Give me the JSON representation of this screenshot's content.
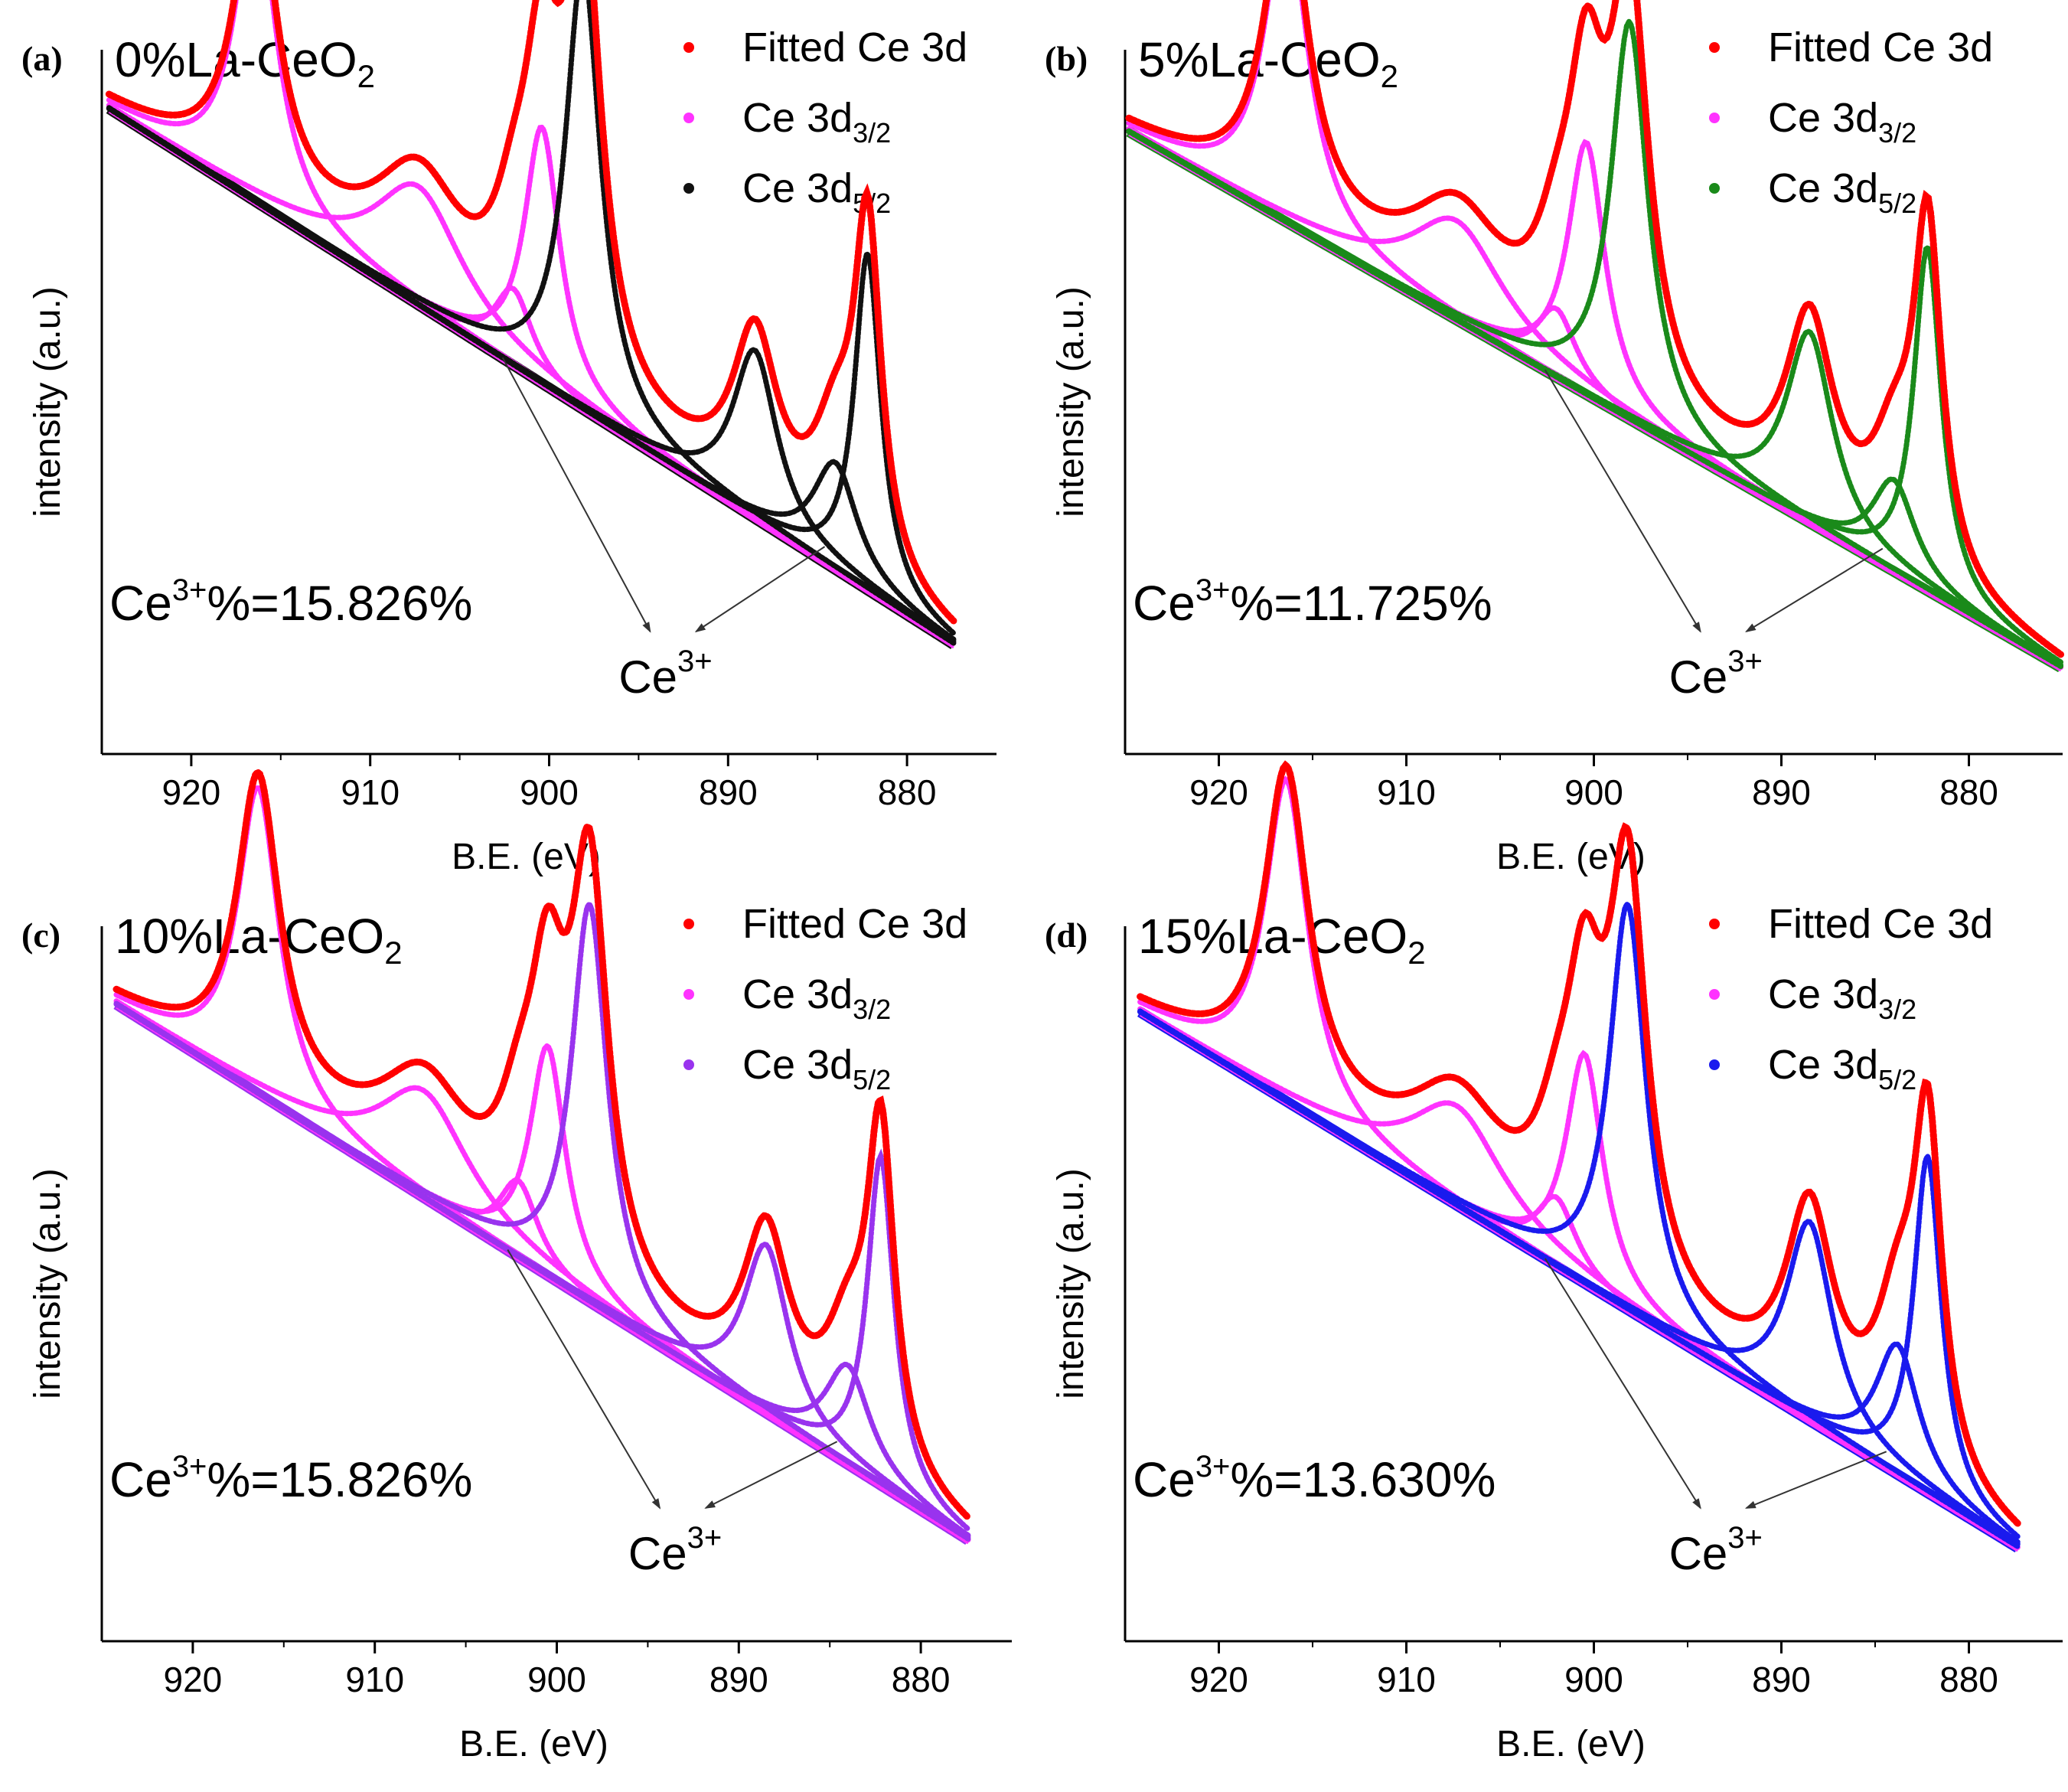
{
  "chart_data": [
    {
      "type": "scatter",
      "panel": "(a)",
      "sample": "0%La-CeO",
      "sample_sub": "2",
      "ce3_label": "Ce",
      "ce3_sup": "3+",
      "ce3_value": "%=15.826%",
      "annotation": "Ce",
      "annotation_sup": "3+",
      "xlabel": "B.E. (eV)",
      "ylabel": "intensity (a.u.)",
      "xlim": [
        925,
        875
      ],
      "x_ticks": [
        "920",
        "910",
        "900",
        "890",
        "880"
      ],
      "legend": [
        {
          "name": "Fitted Ce 3d",
          "sub": "",
          "color": "#ff0000"
        },
        {
          "name": "Ce 3d",
          "sub": "3/2",
          "color": "#ff33ff"
        },
        {
          "name": "Ce 3d",
          "sub": "5/2",
          "color": "#111111"
        }
      ],
      "colors": {
        "fit": "#ff0000",
        "d32": "#ff33ff",
        "d52": "#111111"
      },
      "background": {
        "x_start": 924.6,
        "y_start": 0.7,
        "x_end": 877.4,
        "y_end": 0.0
      },
      "peaks_d32": [
        {
          "center": 916.4,
          "height": 0.4,
          "width": 1.4
        },
        {
          "center": 907.3,
          "height": 0.155,
          "width": 3.0
        },
        {
          "center": 902.0,
          "height": 0.1,
          "width": 1.3
        },
        {
          "center": 900.4,
          "height": 0.335,
          "width": 1.2
        }
      ],
      "peaks_d52": [
        {
          "center": 898.1,
          "height": 0.58,
          "width": 1.2
        },
        {
          "center": 888.5,
          "height": 0.22,
          "width": 1.5
        },
        {
          "center": 884.0,
          "height": 0.14,
          "width": 1.5
        },
        {
          "center": 882.2,
          "height": 0.44,
          "width": 0.9
        }
      ]
    },
    {
      "type": "scatter",
      "panel": "(b)",
      "sample": "5%La-CeO",
      "sample_sub": "2",
      "ce3_label": "Ce",
      "ce3_sup": "3+",
      "ce3_value": "%=11.725%",
      "annotation": "Ce",
      "annotation_sup": "3+",
      "xlabel": "B.E. (eV)",
      "ylabel": "intensity (a.u.)",
      "xlim": [
        925,
        875
      ],
      "x_ticks": [
        "920",
        "910",
        "900",
        "890",
        "880"
      ],
      "legend": [
        {
          "name": "Fitted Ce 3d",
          "sub": "",
          "color": "#ff0000"
        },
        {
          "name": "Ce 3d",
          "sub": "3/2",
          "color": "#ff33ff"
        },
        {
          "name": "Ce 3d",
          "sub": "5/2",
          "color": "#1a8a1a"
        }
      ],
      "colors": {
        "fit": "#ff0000",
        "d32": "#ff33ff",
        "d52": "#1a8a1a"
      },
      "background": {
        "x_start": 924.8,
        "y_start": 0.7,
        "x_end": 875.1,
        "y_end": 0.0
      },
      "peaks_d32": [
        {
          "center": 916.4,
          "height": 0.41,
          "width": 1.4
        },
        {
          "center": 907.3,
          "height": 0.13,
          "width": 3.0
        },
        {
          "center": 902.0,
          "height": 0.09,
          "width": 1.3
        },
        {
          "center": 900.4,
          "height": 0.33,
          "width": 1.2
        }
      ],
      "peaks_d52": [
        {
          "center": 898.1,
          "height": 0.52,
          "width": 1.2
        },
        {
          "center": 888.5,
          "height": 0.25,
          "width": 1.5
        },
        {
          "center": 884.0,
          "height": 0.12,
          "width": 1.4
        },
        {
          "center": 882.2,
          "height": 0.45,
          "width": 0.9
        }
      ]
    },
    {
      "type": "scatter",
      "panel": "(c)",
      "sample": "10%La-CeO",
      "sample_sub": "2",
      "ce3_label": "Ce",
      "ce3_sup": "3+",
      "ce3_value": "%=15.826%",
      "annotation": "Ce",
      "annotation_sup": "3+",
      "xlabel": "B.E. (eV)",
      "ylabel": "intensity (a.u.)",
      "xlim": [
        925,
        875
      ],
      "x_ticks": [
        "920",
        "910",
        "900",
        "890",
        "880"
      ],
      "legend": [
        {
          "name": "Fitted Ce 3d",
          "sub": "",
          "color": "#ff0000"
        },
        {
          "name": "Ce 3d",
          "sub": "3/2",
          "color": "#ff33ff"
        },
        {
          "name": "Ce 3d",
          "sub": "5/2",
          "color": "#9933ee"
        }
      ],
      "colors": {
        "fit": "#ff0000",
        "d32": "#ff33ff",
        "d52": "#9933ee"
      },
      "background": {
        "x_start": 924.2,
        "y_start": 0.7,
        "x_end": 877.4,
        "y_end": 0.0
      },
      "peaks_d32": [
        {
          "center": 916.4,
          "height": 0.4,
          "width": 1.4
        },
        {
          "center": 907.3,
          "height": 0.14,
          "width": 3.0
        },
        {
          "center": 902.1,
          "height": 0.1,
          "width": 1.3
        },
        {
          "center": 900.5,
          "height": 0.3,
          "width": 1.2
        }
      ],
      "peaks_d52": [
        {
          "center": 898.2,
          "height": 0.52,
          "width": 1.2
        },
        {
          "center": 888.5,
          "height": 0.22,
          "width": 1.5
        },
        {
          "center": 884.0,
          "height": 0.13,
          "width": 1.5
        },
        {
          "center": 882.2,
          "height": 0.43,
          "width": 0.9
        }
      ]
    },
    {
      "type": "scatter",
      "panel": "(d)",
      "sample": "15%La-CeO",
      "sample_sub": "2",
      "ce3_label": "Ce",
      "ce3_sup": "3+",
      "ce3_value": "%=13.630%",
      "annotation": "Ce",
      "annotation_sup": "3+",
      "xlabel": "B.E. (eV)",
      "ylabel": "intensity (a.u.)",
      "xlim": [
        925,
        875
      ],
      "x_ticks": [
        "920",
        "910",
        "900",
        "890",
        "880"
      ],
      "legend": [
        {
          "name": "Fitted Ce 3d",
          "sub": "",
          "color": "#ff0000"
        },
        {
          "name": "Ce 3d",
          "sub": "3/2",
          "color": "#ff33ff"
        },
        {
          "name": "Ce 3d",
          "sub": "5/2",
          "color": "#1a1aee"
        }
      ],
      "colors": {
        "fit": "#ff0000",
        "d32": "#ff33ff",
        "d52": "#1a1aee"
      },
      "background": {
        "x_start": 924.2,
        "y_start": 0.7,
        "x_end": 877.4,
        "y_end": 0.0
      },
      "peaks_d32": [
        {
          "center": 916.4,
          "height": 0.42,
          "width": 1.4
        },
        {
          "center": 907.3,
          "height": 0.13,
          "width": 3.0
        },
        {
          "center": 902.0,
          "height": 0.09,
          "width": 1.3
        },
        {
          "center": 900.5,
          "height": 0.3,
          "width": 1.2
        }
      ],
      "peaks_d52": [
        {
          "center": 898.2,
          "height": 0.53,
          "width": 1.2
        },
        {
          "center": 888.5,
          "height": 0.26,
          "width": 1.5
        },
        {
          "center": 883.8,
          "height": 0.17,
          "width": 1.4
        },
        {
          "center": 882.2,
          "height": 0.44,
          "width": 0.9
        }
      ]
    }
  ]
}
